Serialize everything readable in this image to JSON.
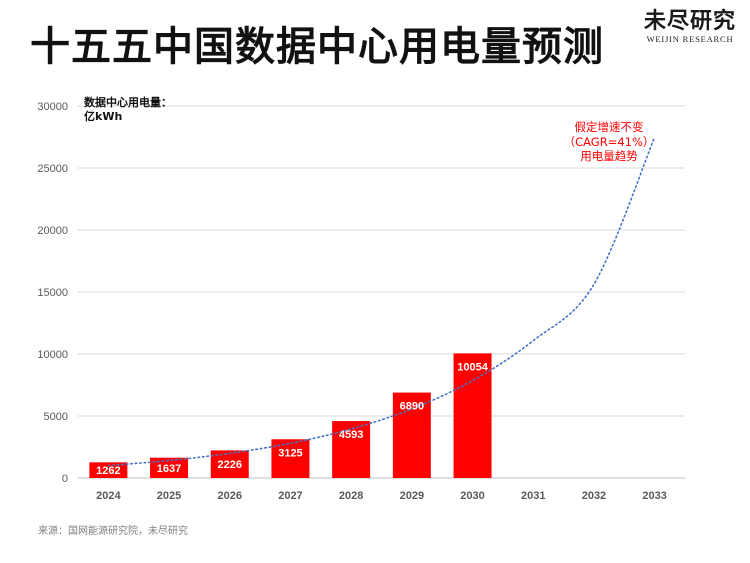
{
  "title": "十五五中国数据中心用电量预测",
  "logo": {
    "name_cn": "未尽研究",
    "name_en": "WEIJIN RESEARCH"
  },
  "source": "来源：国网能源研究院，未尽研究",
  "colors": {
    "bar": "#ff0000",
    "trend": "#4472c4",
    "annotation": "#ff0000",
    "grid": "#d9d9d9",
    "tick": "#595959"
  },
  "chart_data": {
    "type": "bar",
    "title": "十五五中国数据中心用电量预测",
    "ylabel": "数据中心用电量：",
    "yunit": "亿kWh",
    "categories": [
      "2024",
      "2025",
      "2026",
      "2027",
      "2028",
      "2029",
      "2030",
      "2031",
      "2032",
      "2033"
    ],
    "values": [
      1262,
      1637,
      2226,
      3125,
      4593,
      6890,
      10054,
      null,
      null,
      null
    ],
    "ylim": [
      0,
      30000
    ],
    "yticks": [
      0,
      5000,
      10000,
      15000,
      20000,
      25000,
      30000
    ],
    "grid": true,
    "trendline": {
      "type": "exponential",
      "style": "dotted",
      "x": [
        "2024",
        "2025",
        "2026",
        "2027",
        "2028",
        "2029",
        "2030",
        "2031",
        "2032",
        "2033"
      ],
      "values": [
        1000,
        1410,
        1988,
        2803,
        3953,
        5573,
        7858,
        11080,
        15623,
        27500
      ]
    },
    "annotation": {
      "lines": [
        "假定增速不变",
        "（CAGR=41%）",
        "用电量趋势"
      ]
    }
  }
}
